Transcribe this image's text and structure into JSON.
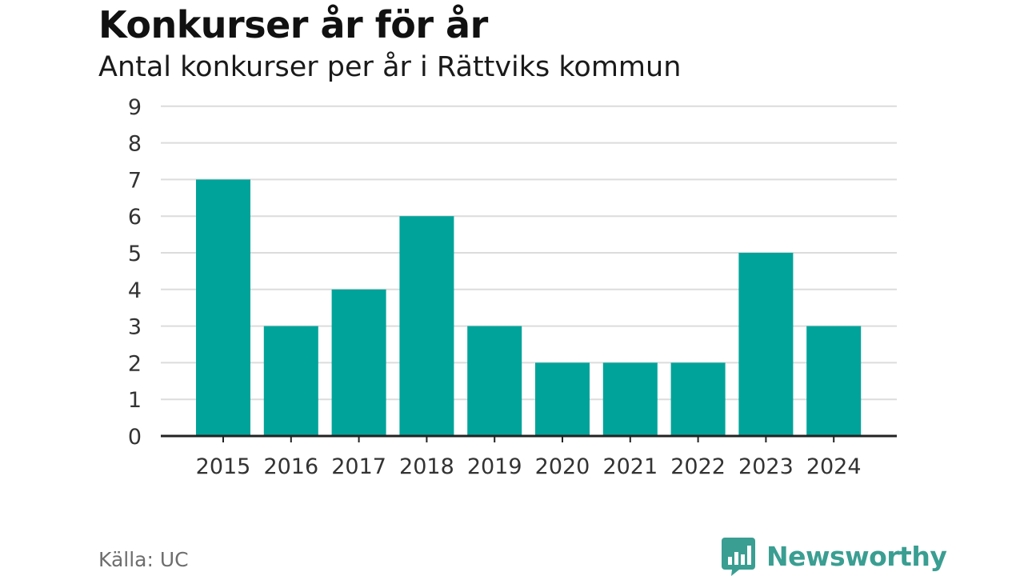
{
  "header": {
    "title": "Konkurser år för år",
    "subtitle": "Antal konkurser per år i Rättviks kommun"
  },
  "footer": {
    "source": "Källa: UC",
    "brand": "Newsworthy"
  },
  "colors": {
    "bar": "#00a39a",
    "brand": "#3a9e92",
    "grid": "#dcdcdc",
    "axis": "#222222"
  },
  "icons": {
    "brand": "bar-chart-speech-bubble-icon"
  },
  "chart_data": {
    "type": "bar",
    "title": "Konkurser år för år",
    "subtitle": "Antal konkurser per år i Rättviks kommun",
    "categories": [
      "2015",
      "2016",
      "2017",
      "2018",
      "2019",
      "2020",
      "2021",
      "2022",
      "2023",
      "2024"
    ],
    "values": [
      7,
      3,
      4,
      6,
      3,
      2,
      2,
      2,
      5,
      3
    ],
    "xlabel": "",
    "ylabel": "",
    "ylim": [
      0,
      9
    ],
    "yticks": [
      0,
      1,
      2,
      3,
      4,
      5,
      6,
      7,
      8,
      9
    ],
    "grid": true,
    "legend": "none"
  }
}
